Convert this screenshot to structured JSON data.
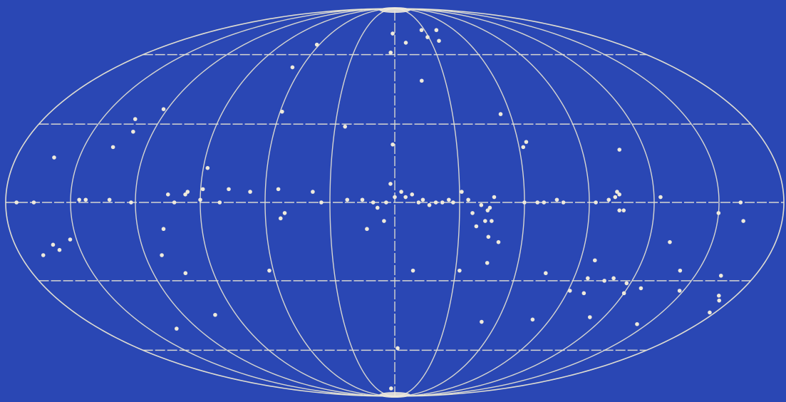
{
  "chart_data": {
    "type": "scatter",
    "projection": "Mollweide",
    "coordinate_system": "galactic",
    "grid": true,
    "colors": {
      "background": "#2a47b4",
      "grid": "#e9e6d4",
      "points": "#efeadb"
    },
    "meridians_deg": [
      -180,
      -150,
      -120,
      -90,
      -60,
      -30,
      0,
      30,
      60,
      90,
      120,
      150,
      180
    ],
    "parallels_deg": [
      -60,
      -30,
      0,
      30,
      60
    ],
    "x_range": [
      -180,
      180
    ],
    "y_range": [
      -90,
      90
    ],
    "points": [
      {
        "l": -2,
        "b": 71
      },
      {
        "l": 27,
        "b": 73
      },
      {
        "l": 29,
        "b": 69
      },
      {
        "l": 37,
        "b": 67
      },
      {
        "l": 42,
        "b": 73
      },
      {
        "l": 9,
        "b": 66
      },
      {
        "l": -3,
        "b": 61
      },
      {
        "l": 16,
        "b": 48
      },
      {
        "l": -62,
        "b": 65
      },
      {
        "l": -66,
        "b": 54
      },
      {
        "l": -59,
        "b": 35
      },
      {
        "l": -122,
        "b": 36
      },
      {
        "l": -133,
        "b": 32
      },
      {
        "l": -130,
        "b": 27
      },
      {
        "l": -25,
        "b": 29
      },
      {
        "l": -1,
        "b": 22
      },
      {
        "l": 55,
        "b": 34
      },
      {
        "l": 62,
        "b": 21
      },
      {
        "l": 64,
        "b": 23
      },
      {
        "l": 108,
        "b": 20
      },
      {
        "l": -136,
        "b": 21
      },
      {
        "l": -162,
        "b": 17
      },
      {
        "l": -88,
        "b": 13
      },
      {
        "l": -89,
        "b": 5
      },
      {
        "l": -77,
        "b": 5
      },
      {
        "l": -96,
        "b": 4
      },
      {
        "l": -90,
        "b": 1
      },
      {
        "l": -81,
        "b": 0
      },
      {
        "l": -67,
        "b": 4
      },
      {
        "l": -54,
        "b": 5
      },
      {
        "l": -38,
        "b": 4
      },
      {
        "l": -34,
        "b": 0
      },
      {
        "l": -22,
        "b": 1
      },
      {
        "l": -15,
        "b": 1
      },
      {
        "l": -10,
        "b": 0
      },
      {
        "l": -8,
        "b": -2
      },
      {
        "l": -4,
        "b": 0
      },
      {
        "l": -2,
        "b": 7
      },
      {
        "l": 0,
        "b": 2
      },
      {
        "l": 3,
        "b": 4
      },
      {
        "l": 5,
        "b": 2
      },
      {
        "l": 8,
        "b": 3
      },
      {
        "l": 11,
        "b": 0
      },
      {
        "l": 13,
        "b": 1
      },
      {
        "l": 16,
        "b": -1
      },
      {
        "l": 19,
        "b": 0
      },
      {
        "l": 22,
        "b": 0
      },
      {
        "l": 25,
        "b": 1
      },
      {
        "l": 27,
        "b": 0
      },
      {
        "l": 31,
        "b": 4
      },
      {
        "l": 34,
        "b": 1
      },
      {
        "l": 36,
        "b": -4
      },
      {
        "l": 40,
        "b": -1
      },
      {
        "l": 44,
        "b": -2
      },
      {
        "l": 45,
        "b": -7
      },
      {
        "l": 46,
        "b": 2
      },
      {
        "l": 60,
        "b": 0
      },
      {
        "l": 66,
        "b": 0
      },
      {
        "l": 69,
        "b": 0
      },
      {
        "l": 78,
        "b": 0
      },
      {
        "l": 93,
        "b": 0
      },
      {
        "l": 99,
        "b": 1
      },
      {
        "l": 102,
        "b": 2
      },
      {
        "l": 103,
        "b": 4
      },
      {
        "l": 104,
        "b": 3
      },
      {
        "l": 104,
        "b": -3
      },
      {
        "l": 106,
        "b": -3
      },
      {
        "l": 123,
        "b": 2
      },
      {
        "l": 150,
        "b": -4
      },
      {
        "l": 160,
        "b": 0
      },
      {
        "l": 162,
        "b": -7
      },
      {
        "l": -167,
        "b": 0
      },
      {
        "l": -146,
        "b": 1
      },
      {
        "l": -143,
        "b": 1
      },
      {
        "l": -132,
        "b": 1
      },
      {
        "l": -122,
        "b": 0
      },
      {
        "l": -102,
        "b": 0
      },
      {
        "l": -105,
        "b": 3
      },
      {
        "l": -97,
        "b": 3
      },
      {
        "l": 43,
        "b": -3
      },
      {
        "l": 42,
        "b": -7
      },
      {
        "l": 38,
        "b": -9
      },
      {
        "l": 44,
        "b": -13
      },
      {
        "l": 49,
        "b": -15
      },
      {
        "l": 45,
        "b": -23
      },
      {
        "l": 32,
        "b": -26
      },
      {
        "l": -5,
        "b": -7
      },
      {
        "l": -13,
        "b": -10
      },
      {
        "l": -51,
        "b": -4
      },
      {
        "l": -53,
        "b": -6
      },
      {
        "l": -108,
        "b": -10
      },
      {
        "l": -153,
        "b": -14
      },
      {
        "l": -162,
        "b": -16
      },
      {
        "l": -160,
        "b": -18
      },
      {
        "l": -169,
        "b": -20
      },
      {
        "l": -112,
        "b": -20
      },
      {
        "l": -104,
        "b": -27
      },
      {
        "l": -62,
        "b": -26
      },
      {
        "l": 9,
        "b": -26
      },
      {
        "l": 97,
        "b": -22
      },
      {
        "l": 97,
        "b": -29
      },
      {
        "l": 91,
        "b": -34
      },
      {
        "l": 106,
        "b": -30
      },
      {
        "l": 110,
        "b": -29
      },
      {
        "l": 118,
        "b": -31
      },
      {
        "l": 141,
        "b": -26
      },
      {
        "l": 163,
        "b": -28
      },
      {
        "l": 148,
        "b": -34
      },
      {
        "l": 171,
        "b": -36
      },
      {
        "l": 177,
        "b": -43
      },
      {
        "l": 174,
        "b": -38
      },
      {
        "l": 120,
        "b": -35
      },
      {
        "l": 99,
        "b": -35
      },
      {
        "l": 112,
        "b": -45
      },
      {
        "l": 80,
        "b": -46
      },
      {
        "l": 51,
        "b": -47
      },
      {
        "l": 144,
        "b": -48
      },
      {
        "l": -102,
        "b": -44
      },
      {
        "l": -133,
        "b": -50
      },
      {
        "l": 2,
        "b": -59
      },
      {
        "l": -6,
        "b": -82
      },
      {
        "l": 75,
        "b": -27
      },
      {
        "l": 127,
        "b": -33
      },
      {
        "l": 130,
        "b": -15
      },
      {
        "l": 75,
        "b": 1
      },
      {
        "l": -175,
        "b": 0
      }
    ]
  }
}
